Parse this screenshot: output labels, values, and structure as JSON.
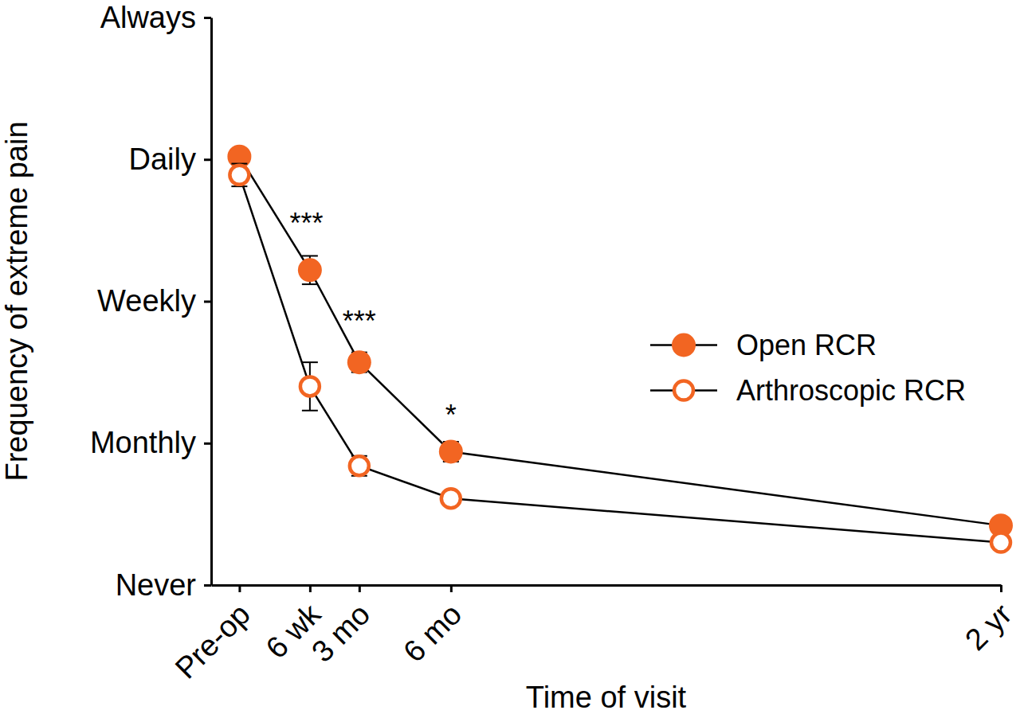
{
  "chart_data": {
    "type": "line",
    "x_label": "Time of visit",
    "y_label": "Frequency of extreme pain",
    "x": [
      -4,
      6,
      13,
      26,
      104
    ],
    "xlim": [
      -8,
      104
    ],
    "xticks": [
      {
        "value": -4,
        "label": "Pre-op"
      },
      {
        "value": 6,
        "label": "6 wk"
      },
      {
        "value": 13,
        "label": "3 mo"
      },
      {
        "value": 26,
        "label": "6 mo"
      },
      {
        "value": 104,
        "label": "2 yr"
      }
    ],
    "ylim": [
      0,
      4
    ],
    "yticks": [
      {
        "value": 0,
        "label": "Never"
      },
      {
        "value": 1,
        "label": "Monthly"
      },
      {
        "value": 2,
        "label": "Weekly"
      },
      {
        "value": 3,
        "label": "Daily"
      },
      {
        "value": 4,
        "label": "Always"
      }
    ],
    "legend": "right",
    "series": [
      {
        "name": "Open RCR",
        "color": "#f26522",
        "marker": "circle",
        "line_style": "solid",
        "values": [
          3.02,
          2.22,
          1.57,
          0.94,
          0.42
        ],
        "errors": [
          0.05,
          0.1,
          0.07,
          0.07,
          0.03
        ]
      },
      {
        "name": "Arthroscopic RCR",
        "color": "#f26522",
        "marker": "open-circle",
        "line_style": "solid",
        "values": [
          2.89,
          1.4,
          0.84,
          0.61,
          0.3
        ],
        "errors": [
          0.08,
          0.17,
          0.07,
          0.04,
          0.03
        ]
      }
    ],
    "annotations": [
      {
        "text": "***",
        "x": 5.5,
        "y": 2.58
      },
      {
        "text": "***",
        "x": 13,
        "y": 1.89
      },
      {
        "text": "*",
        "x": 26,
        "y": 1.23
      }
    ]
  }
}
